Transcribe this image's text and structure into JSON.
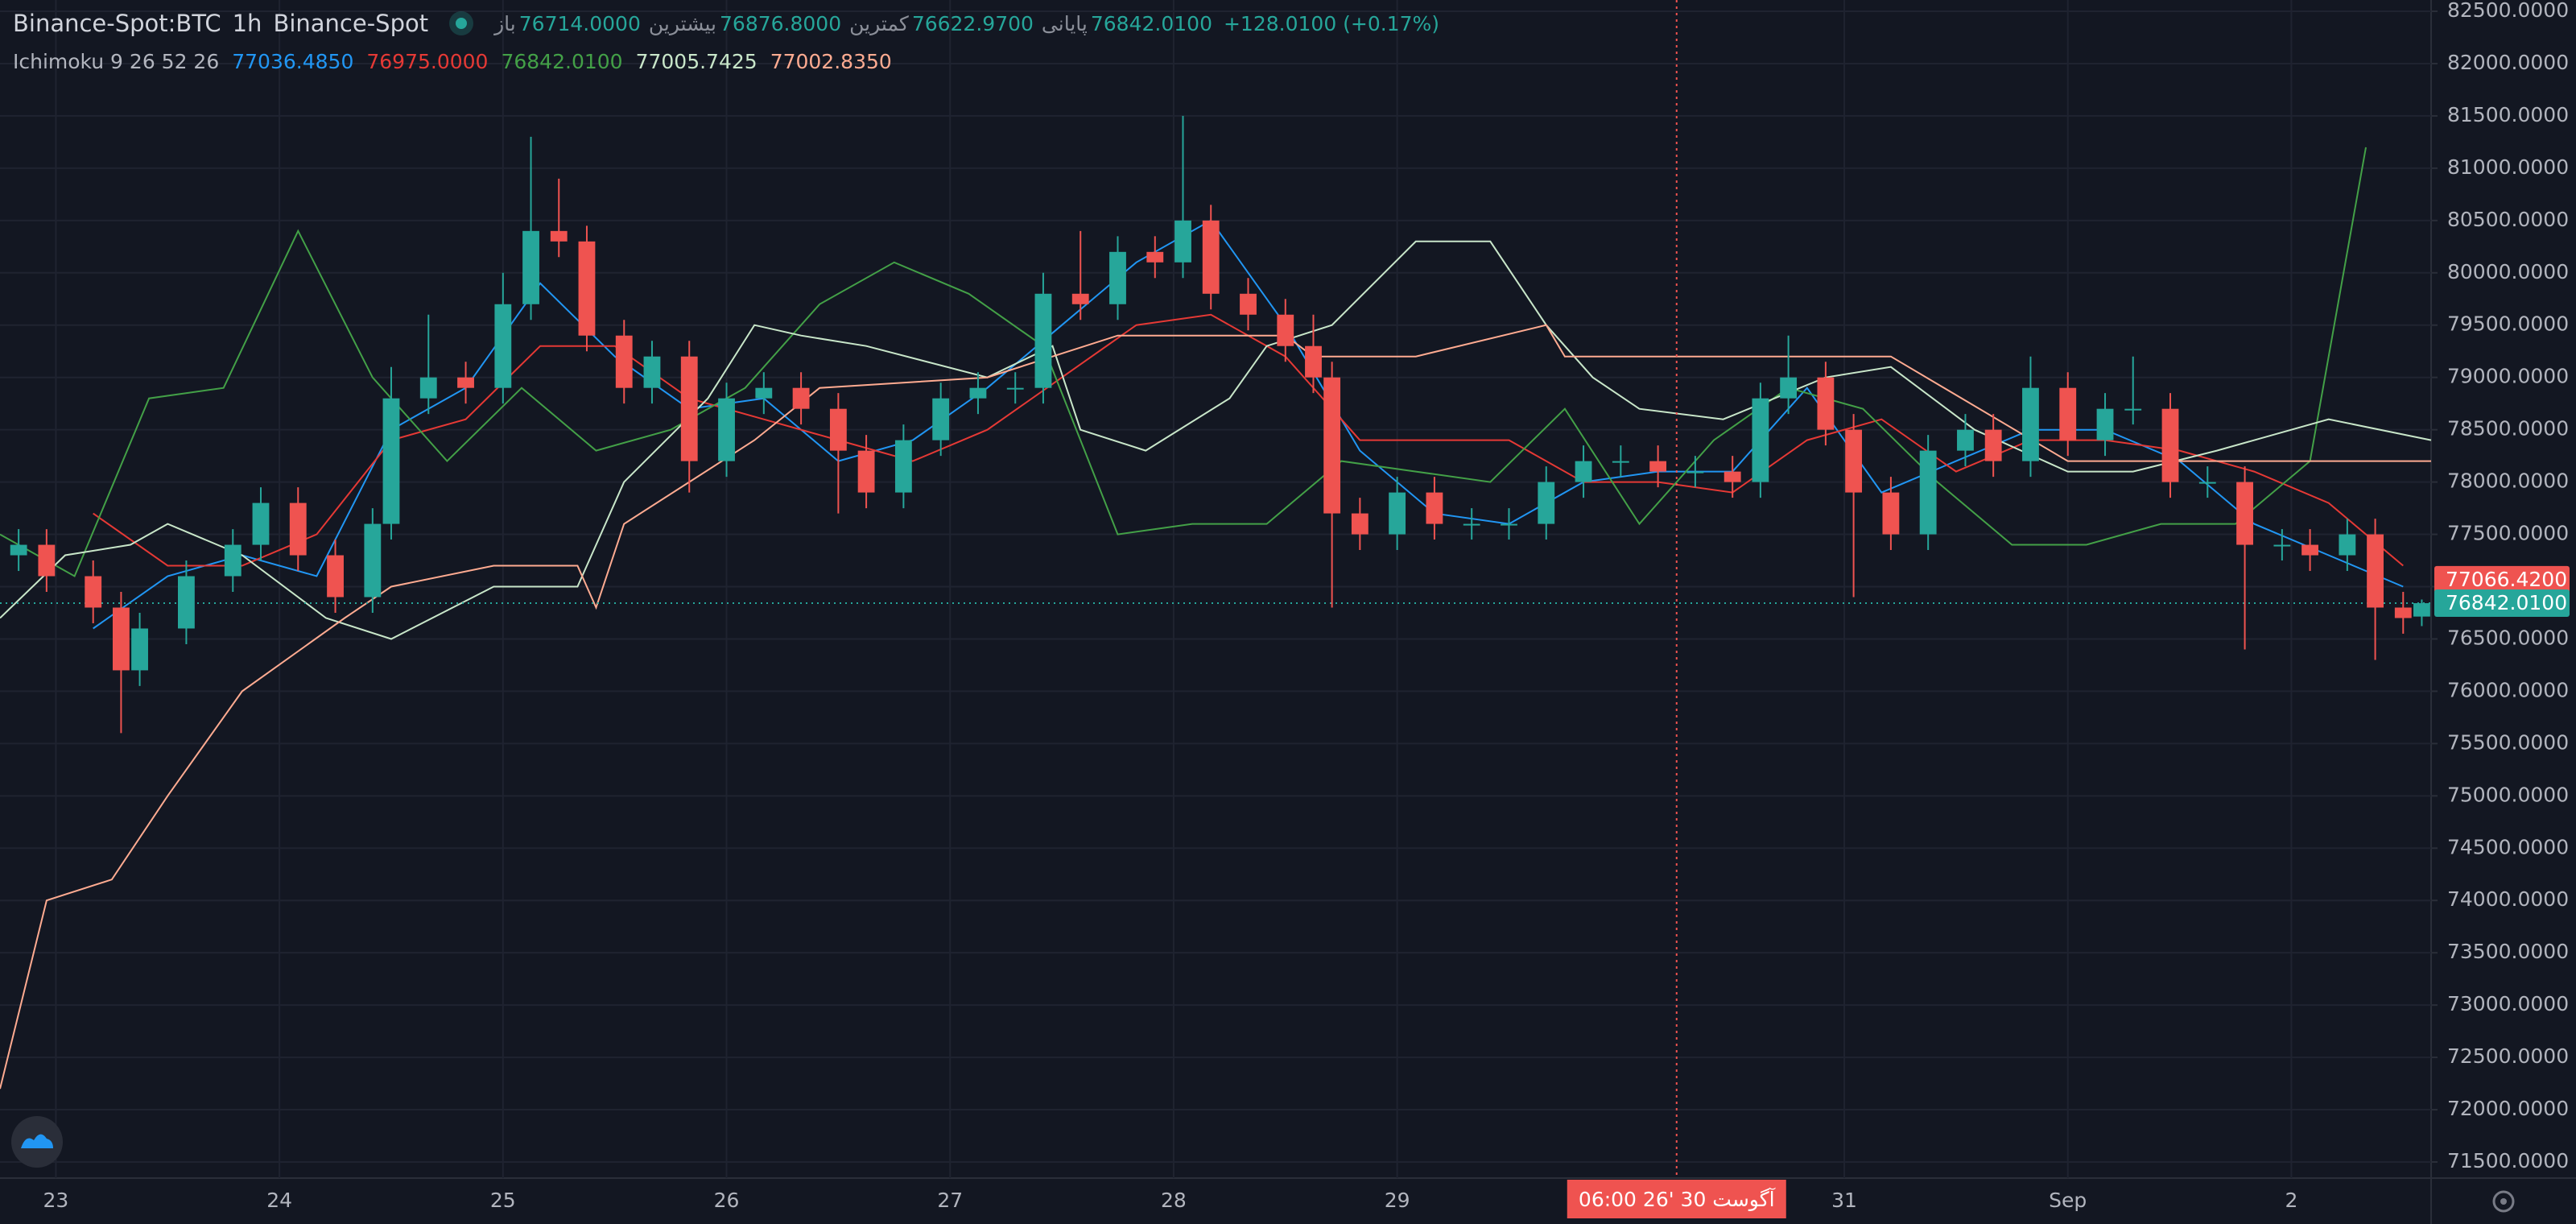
{
  "chart_data": {
    "type": "candlestick",
    "symbol": "Binance-Spot:BTC",
    "interval": "1h",
    "exchange": "Binance-Spot",
    "ohlc_legend": [
      {
        "name": "باز",
        "value": 76714,
        "label": "76714.0000"
      },
      {
        "name": "بیشترین",
        "value": 76876.8,
        "label": "76876.8000"
      },
      {
        "name": "کمترین",
        "value": 76622.97,
        "label": "76622.9700"
      },
      {
        "name": "پایانی",
        "value": 76842.01,
        "label": "76842.0100"
      }
    ],
    "change": "+128.0100 (+0.17%)",
    "indicator": "Ichimoku 9 26 52 26",
    "indicator_values": [
      {
        "value": 77036.485,
        "label": "77036.4850",
        "color": "#2196f3"
      },
      {
        "value": 76975,
        "label": "76975.0000",
        "color": "#e53935"
      },
      {
        "value": 76842.01,
        "label": "76842.0100",
        "color": "#43a047"
      },
      {
        "value": 77005.7425,
        "label": "77005.7425",
        "color": "#c8e6c9"
      },
      {
        "value": 77002.835,
        "label": "77002.8350",
        "color": "#ffab91"
      }
    ],
    "up_color": "#26a69a",
    "down_color": "#ef5350",
    "x": [
      2,
      5,
      10,
      13,
      15,
      20,
      25,
      28,
      32,
      36,
      40,
      42,
      46,
      50,
      54,
      57,
      60,
      63,
      67,
      70,
      74,
      78,
      82,
      86,
      90,
      93,
      97,
      101,
      105,
      109,
      112,
      116,
      120,
      124,
      127,
      130,
      134,
      138,
      141,
      143,
      146,
      150,
      154,
      158,
      162,
      166,
      170,
      174,
      178,
      182,
      186,
      189,
      192,
      196,
      199,
      203,
      207,
      211,
      214,
      218,
      222,
      226,
      229,
      233,
      237,
      241,
      245,
      248,
      252,
      255,
      258,
      260
    ],
    "open": [
      77300,
      77400,
      77100,
      76800,
      76200,
      76600,
      77100,
      77400,
      77800,
      77300,
      76900,
      77600,
      78800,
      79000,
      78900,
      79700,
      80400,
      80300,
      79400,
      78900,
      79200,
      78200,
      78800,
      78900,
      78700,
      78300,
      77900,
      78400,
      78800,
      78900,
      78900,
      79800,
      79700,
      80200,
      80100,
      80500,
      79800,
      79600,
      79300,
      79000,
      77700,
      77500,
      77900,
      77600,
      77600,
      77600,
      78000,
      78200,
      78200,
      78100,
      78100,
      78000,
      78800,
      79000,
      78500,
      77900,
      77500,
      78300,
      78500,
      78200,
      78900,
      78400,
      78700,
      78700,
      78000,
      78000,
      77400,
      77400,
      77300,
      77500,
      76800,
      76714
    ],
    "high": [
      77550,
      77550,
      77250,
      76950,
      76750,
      77250,
      77550,
      77950,
      77950,
      77450,
      77750,
      79100,
      79600,
      79150,
      80000,
      81300,
      80900,
      80450,
      79550,
      79350,
      79350,
      78950,
      79050,
      79050,
      78850,
      78450,
      78550,
      78950,
      79050,
      79050,
      80000,
      80400,
      80350,
      80350,
      81500,
      80650,
      79950,
      79750,
      79600,
      79150,
      77850,
      78050,
      78050,
      77750,
      77750,
      78150,
      78350,
      78350,
      78350,
      78250,
      78250,
      78950,
      79400,
      79150,
      78650,
      78050,
      78450,
      78650,
      78650,
      79200,
      79050,
      78850,
      79200,
      78850,
      78150,
      78150,
      77550,
      77550,
      77650,
      77650,
      76950,
      76876.8
    ],
    "low": [
      77150,
      76950,
      76650,
      75600,
      76050,
      76450,
      76950,
      77250,
      77150,
      76750,
      76750,
      77450,
      78650,
      78750,
      78750,
      79550,
      80150,
      79250,
      78750,
      78750,
      77900,
      78050,
      78650,
      78550,
      77700,
      77750,
      77750,
      78250,
      78650,
      78750,
      78750,
      79550,
      79550,
      79950,
      79950,
      79650,
      79450,
      79150,
      78850,
      76800,
      77350,
      77350,
      77450,
      77450,
      77450,
      77450,
      77850,
      78050,
      77950,
      77950,
      77850,
      77850,
      78650,
      78350,
      76900,
      77350,
      77350,
      78150,
      78050,
      78050,
      78250,
      78250,
      78550,
      77850,
      77850,
      76400,
      77250,
      77150,
      77150,
      76300,
      76550,
      76622.97
    ],
    "close": [
      77400,
      77100,
      76800,
      76200,
      76600,
      77100,
      77400,
      77800,
      77300,
      76900,
      77600,
      78800,
      79000,
      78900,
      79700,
      80400,
      80300,
      79400,
      78900,
      79200,
      78200,
      78800,
      78900,
      78700,
      78300,
      77900,
      78400,
      78800,
      78900,
      78900,
      79800,
      79700,
      80200,
      80100,
      80500,
      79800,
      79600,
      79300,
      79000,
      77700,
      77500,
      77900,
      77600,
      77600,
      77600,
      78000,
      78200,
      78200,
      78100,
      78100,
      78000,
      78800,
      79000,
      78500,
      77900,
      77500,
      78300,
      78500,
      78200,
      78900,
      78400,
      78700,
      78700,
      78000,
      78000,
      77400,
      77400,
      77300,
      77500,
      76800,
      76700,
      76842.01
    ],
    "lines": [
      {
        "color": "#2196f3",
        "x": [
          10,
          18,
          26,
          34,
          42,
          50,
          58,
          66,
          74,
          82,
          90,
          98,
          106,
          114,
          122,
          130,
          138,
          146,
          154,
          162,
          170,
          178,
          186,
          194,
          202,
          210,
          218,
          226,
          234,
          242,
          250,
          258
        ],
        "values": [
          76600,
          77100,
          77300,
          77100,
          78500,
          78900,
          79900,
          79200,
          78700,
          78800,
          78200,
          78400,
          78900,
          79500,
          80100,
          80500,
          79500,
          78300,
          77700,
          77600,
          78000,
          78100,
          78100,
          78900,
          77900,
          78200,
          78500,
          78500,
          78200,
          77600,
          77300,
          77000
        ]
      },
      {
        "color": "#e53935",
        "x": [
          10,
          18,
          26,
          34,
          42,
          50,
          58,
          66,
          74,
          82,
          90,
          98,
          106,
          114,
          122,
          130,
          138,
          146,
          154,
          162,
          170,
          178,
          186,
          194,
          202,
          210,
          218,
          226,
          234,
          242,
          250,
          258
        ],
        "values": [
          77700,
          77200,
          77200,
          77500,
          78400,
          78600,
          79300,
          79300,
          78800,
          78600,
          78400,
          78200,
          78500,
          79000,
          79500,
          79600,
          79200,
          78400,
          78400,
          78400,
          78000,
          78000,
          77900,
          78400,
          78600,
          78100,
          78400,
          78400,
          78300,
          78100,
          77800,
          77200
        ]
      },
      {
        "color": "#43a047",
        "x": [
          0,
          8,
          16,
          24,
          32,
          40,
          48,
          56,
          64,
          72,
          80,
          88,
          96,
          104,
          112,
          120,
          128,
          136,
          144,
          152,
          160,
          168,
          176,
          184,
          192,
          200,
          208,
          216,
          224,
          232,
          240,
          248,
          254
        ],
        "values": [
          77500,
          77100,
          78800,
          78900,
          80400,
          79000,
          78200,
          78900,
          78300,
          78500,
          78900,
          79700,
          80100,
          79800,
          79300,
          77500,
          77600,
          77600,
          78200,
          78100,
          78000,
          78700,
          77600,
          78400,
          78900,
          78700,
          78000,
          77400,
          77400,
          77600,
          77600,
          78200,
          81200
        ]
      },
      {
        "color": "#c8e6c9",
        "x": [
          0,
          7,
          14,
          18,
          26,
          35,
          42,
          53,
          62,
          67,
          76,
          81,
          86,
          93,
          106,
          113,
          116,
          123,
          132,
          136,
          143,
          152,
          160,
          166,
          171,
          176,
          185,
          196,
          203,
          212,
          222,
          229,
          238,
          250,
          261
        ],
        "values": [
          76700,
          77300,
          77400,
          77600,
          77300,
          76700,
          76500,
          77000,
          77000,
          78000,
          78800,
          79500,
          79400,
          79300,
          79000,
          79300,
          78500,
          78300,
          78800,
          79300,
          79500,
          80300,
          80300,
          79500,
          79000,
          78700,
          78600,
          79000,
          79100,
          78500,
          78100,
          78100,
          78300,
          78600,
          78400
        ]
      },
      {
        "color": "#ffab91",
        "x": [
          0,
          5,
          12,
          18,
          26,
          37,
          42,
          53,
          62,
          64,
          67,
          74,
          81,
          88,
          106,
          120,
          138,
          141,
          152,
          166,
          168,
          203,
          222,
          261
        ],
        "values": [
          72200,
          74000,
          74200,
          75000,
          76000,
          76700,
          77000,
          77200,
          77200,
          76800,
          77600,
          78000,
          78400,
          78900,
          79000,
          79400,
          79400,
          79200,
          79200,
          79500,
          79200,
          79200,
          78200,
          78200
        ]
      }
    ],
    "xlim": [
      0,
      261
    ],
    "xticks": [
      {
        "value": 6,
        "label": "23"
      },
      {
        "value": 30,
        "label": "24"
      },
      {
        "value": 54,
        "label": "25"
      },
      {
        "value": 78,
        "label": "26"
      },
      {
        "value": 102,
        "label": "27"
      },
      {
        "value": 126,
        "label": "28"
      },
      {
        "value": 150,
        "label": "29"
      },
      {
        "value": 198,
        "label": "31"
      },
      {
        "value": 222,
        "label": "Sep"
      },
      {
        "value": 246,
        "label": "2"
      }
    ],
    "ylim": [
      71346,
      82608
    ],
    "yticks": [
      {
        "value": 71500,
        "label": "71500.0000"
      },
      {
        "value": 72000,
        "label": "72000.0000"
      },
      {
        "value": 72500,
        "label": "72500.0000"
      },
      {
        "value": 73000,
        "label": "73000.0000"
      },
      {
        "value": 73500,
        "label": "73500.0000"
      },
      {
        "value": 74000,
        "label": "74000.0000"
      },
      {
        "value": 74500,
        "label": "74500.0000"
      },
      {
        "value": 75000,
        "label": "75000.0000"
      },
      {
        "value": 75500,
        "label": "75500.0000"
      },
      {
        "value": 76000,
        "label": "76000.0000"
      },
      {
        "value": 76500,
        "label": "76500.0000"
      },
      {
        "value": 77000,
        "label": "77000.0000"
      },
      {
        "value": 77500,
        "label": "77500.0000"
      },
      {
        "value": 78000,
        "label": "78000.0000"
      },
      {
        "value": 78500,
        "label": "78500.0000"
      },
      {
        "value": 79000,
        "label": "79000.0000"
      },
      {
        "value": 79500,
        "label": "79500.0000"
      },
      {
        "value": 80000,
        "label": "80000.0000"
      },
      {
        "value": 80500,
        "label": "80500.0000"
      },
      {
        "value": 81000,
        "label": "81000.0000"
      },
      {
        "value": 81500,
        "label": "81500.0000"
      },
      {
        "value": 82000,
        "label": "82000.0000"
      },
      {
        "value": 82500,
        "label": "82500.0000"
      }
    ],
    "grid": true,
    "price_markers": [
      {
        "value": 77066.42,
        "label": "77066.4200",
        "color": "#ef5350",
        "dotted_line": false
      },
      {
        "value": 76842.01,
        "label": "76842.0100",
        "color": "#26a69a",
        "dotted_line": true
      }
    ],
    "crosshair": {
      "x": 180,
      "label": "06:00 26' آگوست 30",
      "color": "#ef5350"
    }
  }
}
